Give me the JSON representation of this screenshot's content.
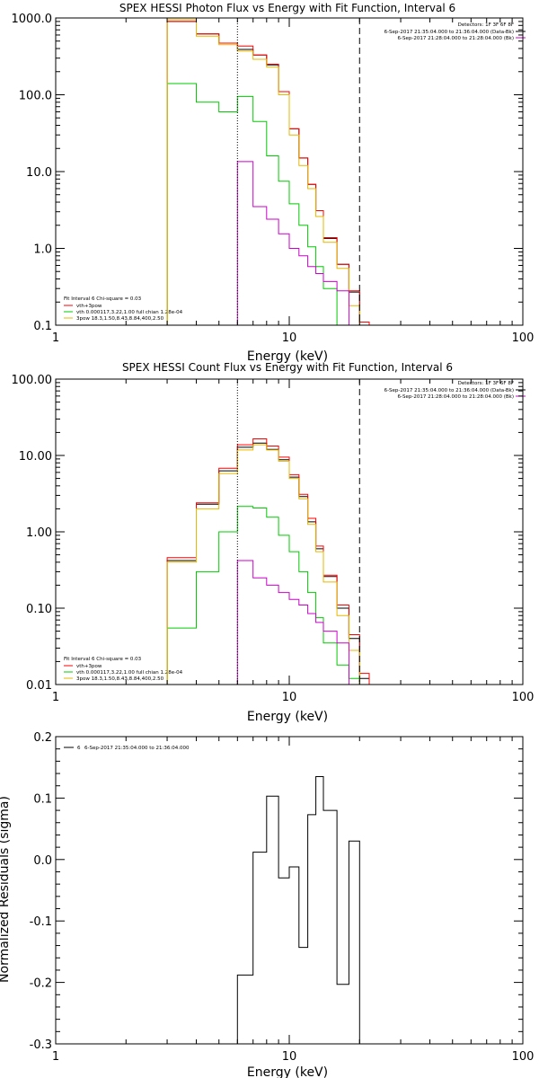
{
  "colors": {
    "background": "#ffffff",
    "axes": "#000000",
    "sum": "#000000",
    "total": "#ff0000",
    "thermal": "#00cc00",
    "powerlaw": "#e6b800",
    "background_spec": "#cc00cc"
  },
  "chart_data": [
    {
      "type": "line",
      "step": true,
      "title": "SPEX HESSI Photon Flux vs Energy with Fit Function, Interval 6",
      "xlabel": "Energy (keV)",
      "ylabel": "",
      "xscale": "log",
      "yscale": "log",
      "xlim": [
        1,
        100
      ],
      "ylim": [
        0.1,
        1000
      ],
      "xticks": [
        "1",
        "10",
        "100"
      ],
      "yticks": [
        "0.1",
        "1.0",
        "10.0",
        "100.0",
        "1000.0"
      ],
      "vlines": [
        {
          "x": 6,
          "style": "dotted"
        },
        {
          "x": 20,
          "style": "dashed"
        }
      ],
      "edges": [
        3,
        4,
        5,
        6,
        7,
        8,
        9,
        10,
        11,
        12,
        13,
        14,
        16,
        18,
        20,
        22
      ],
      "series": [
        {
          "color_key": "sum",
          "values": [
            900,
            620,
            470,
            390,
            330,
            245,
            110,
            36,
            15,
            6.8,
            3.1,
            1.35,
            0.62,
            0.27,
            0.11
          ]
        },
        {
          "color_key": "total",
          "values": [
            900,
            620,
            470,
            430,
            330,
            250,
            110,
            36,
            15,
            6.8,
            3.1,
            1.38,
            0.62,
            0.28,
            0.11
          ]
        },
        {
          "color_key": "thermal",
          "values": [
            140,
            80,
            60,
            95,
            45,
            16,
            7.5,
            3.8,
            2.0,
            1.05,
            0.58,
            0.3
          ]
        },
        {
          "color_key": "powerlaw",
          "values": [
            950,
            580,
            450,
            370,
            290,
            230,
            100,
            30,
            12,
            6,
            2.6,
            1.2,
            0.55,
            0.18
          ]
        },
        {
          "color_key": "background_spec",
          "values": [
            13.5,
            3.5,
            2.4,
            1.55,
            1.0,
            0.8,
            0.58,
            0.47,
            0.37,
            0.28
          ]
        }
      ],
      "series_start_edge": [
        0,
        0,
        0,
        0,
        3
      ],
      "legend": {
        "lines": [
          "Detectors: 1F 3F 6F 8F",
          "6-Sep-2017 21:35:04.000 to 21:36:04.000 (Data-Bk)",
          "6-Sep-2017 21:28:04.000 to 21:28:04.000 (Bk)"
        ],
        "fit_lines": [
          "Fit Interval  6    Chi-square = 0.03",
          "vth+3pow",
          "vth 0.000117,3.22,1.00   full chian 1.28e-04",
          "3pow 18.3,1.50,8.43,8.84,400,2.50"
        ]
      }
    },
    {
      "type": "line",
      "step": true,
      "title": "SPEX HESSI Count Flux vs Energy with Fit Function, Interval 6",
      "xlabel": "Energy (keV)",
      "ylabel": "",
      "xscale": "log",
      "yscale": "log",
      "xlim": [
        1,
        100
      ],
      "ylim": [
        0.01,
        100
      ],
      "xticks": [
        "1",
        "10",
        "100"
      ],
      "yticks": [
        "0.01",
        "0.10",
        "1.00",
        "10.00",
        "100.00"
      ],
      "vlines": [
        {
          "x": 6,
          "style": "dotted"
        },
        {
          "x": 20,
          "style": "dashed"
        }
      ],
      "edges": [
        3,
        4,
        5,
        6,
        7,
        8,
        9,
        10,
        11,
        12,
        13,
        14,
        16,
        18,
        20,
        22
      ],
      "series": [
        {
          "color_key": "sum",
          "values": [
            0.42,
            2.3,
            6.3,
            12.8,
            14.5,
            12.0,
            8.8,
            5.2,
            2.9,
            1.35,
            0.6,
            0.26,
            0.1,
            0.04,
            0.012
          ]
        },
        {
          "color_key": "total",
          "values": [
            0.46,
            2.4,
            6.8,
            13.8,
            16.5,
            13.3,
            9.5,
            5.6,
            3.1,
            1.5,
            0.65,
            0.27,
            0.11,
            0.045,
            0.014
          ]
        },
        {
          "color_key": "thermal",
          "values": [
            0.055,
            0.3,
            1.0,
            2.15,
            2.05,
            1.55,
            0.9,
            0.55,
            0.3,
            0.16,
            0.075,
            0.035,
            0.018,
            0.012
          ]
        },
        {
          "color_key": "powerlaw",
          "values": [
            0.4,
            2.0,
            5.8,
            11.8,
            13.8,
            11.8,
            8.4,
            5.0,
            2.7,
            1.25,
            0.55,
            0.22,
            0.08,
            0.028,
            0.01
          ]
        },
        {
          "color_key": "background_spec",
          "values": [
            0.42,
            0.25,
            0.2,
            0.16,
            0.13,
            0.11,
            0.085,
            0.065,
            0.05,
            0.035
          ]
        }
      ],
      "series_start_edge": [
        0,
        0,
        0,
        0,
        3
      ],
      "legend": {
        "lines": [
          "Detectors: 1F 3F 6F 8F",
          "6-Sep-2017 21:35:04.000 to 21:36:04.000 (Data-Bk)",
          "6-Sep-2017 21:28:04.000 to 21:28:04.000 (Bk)"
        ],
        "fit_lines": [
          "Fit Interval  6    Chi-square = 0.03",
          "vth+3pow",
          "vth 0.000117,3.22,1.00   full chian 1.28e-04",
          "3pow 18.3,1.50,8.43,8.84,400,2.50"
        ]
      }
    },
    {
      "type": "line",
      "step": true,
      "title": "",
      "xlabel": "Energy (keV)",
      "ylabel": "Normalized Residuals (sigma)",
      "xscale": "log",
      "yscale": "linear",
      "xlim": [
        1,
        100
      ],
      "ylim": [
        -0.3,
        0.2
      ],
      "xticks": [
        "1",
        "10",
        "100"
      ],
      "yticks": [
        "-0.3",
        "-0.2",
        "-0.1",
        "0.0",
        "0.1",
        "0.2"
      ],
      "edges": [
        6,
        7,
        8,
        9,
        10,
        11,
        12,
        13,
        14,
        16,
        18,
        20
      ],
      "series": [
        {
          "color_key": "sum",
          "values": [
            -0.188,
            0.012,
            0.103,
            -0.03,
            -0.012,
            -0.143,
            0.073,
            0.135,
            0.08,
            -0.203,
            0.03
          ]
        }
      ],
      "legend": {
        "lines": [
          "6-Sep-2017 21:35:04.000 to 21:36:04.000"
        ],
        "markers": [
          "6"
        ]
      }
    }
  ]
}
